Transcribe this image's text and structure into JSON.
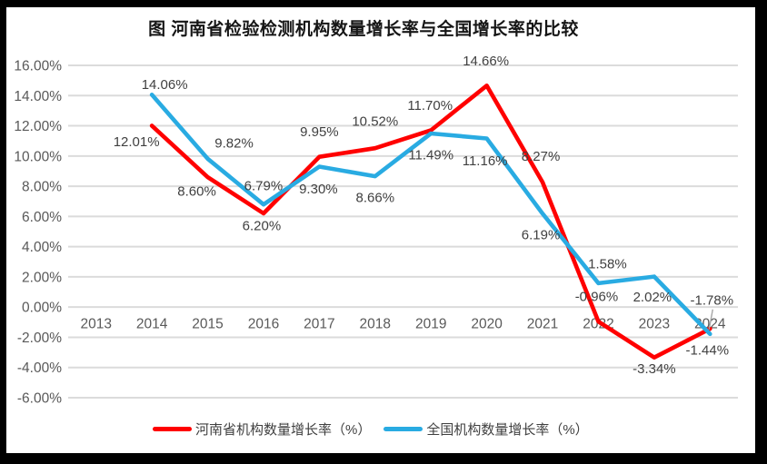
{
  "window": {
    "frame_color": "#000000",
    "panel_color": "#ffffff"
  },
  "chart_data": {
    "type": "line",
    "title": "图  河南省检验检测机构数量增长率与全国增长率的比较",
    "categories": [
      "2013",
      "2014",
      "2015",
      "2016",
      "2017",
      "2018",
      "2019",
      "2020",
      "2021",
      "2022",
      "2023",
      "2024"
    ],
    "y_axis": {
      "min": -6,
      "max": 16,
      "step": 2,
      "tick_labels": [
        "16.00%",
        "14.00%",
        "12.00%",
        "10.00%",
        "8.00%",
        "6.00%",
        "4.00%",
        "2.00%",
        "0.00%",
        "-2.00%",
        "-4.00%",
        "-6.00%"
      ]
    },
    "xlabel": "",
    "ylabel": "",
    "grid": true,
    "legend_position": "bottom",
    "colors": {
      "gridline": "#DBDBDB",
      "tick_text": "#595959",
      "data_label_text": "#404040",
      "leader_line": "#A6A6A6"
    },
    "series": [
      {
        "id": "henan-series",
        "name": "河南省机构数量增长率（%）",
        "color": "#FF0000",
        "values": [
          null,
          12.01,
          8.6,
          6.2,
          9.95,
          10.52,
          11.7,
          14.66,
          8.27,
          -0.96,
          -3.34,
          -1.44
        ],
        "labels": [
          "",
          "12.01%",
          "8.60%",
          "6.20%",
          "9.95%",
          "10.52%",
          "11.70%",
          "14.66%",
          "8.27%",
          "-0.96%",
          "-3.34%",
          "-1.44%"
        ],
        "label_offsets": [
          [
            0,
            0
          ],
          [
            -17,
            17
          ],
          [
            -12,
            15
          ],
          [
            -2,
            13
          ],
          [
            0,
            -28
          ],
          [
            0,
            -30
          ],
          [
            -1,
            -28
          ],
          [
            -1,
            -28
          ],
          [
            -2,
            -29
          ],
          [
            -2,
            -28
          ],
          [
            0,
            12
          ],
          [
            -3,
            23
          ]
        ]
      },
      {
        "id": "national-series",
        "name": "全国机构数量增长率（%）",
        "color": "#29ABE2",
        "values": [
          null,
          14.06,
          9.82,
          6.79,
          9.3,
          8.66,
          11.49,
          11.16,
          6.19,
          1.58,
          2.02,
          -1.78
        ],
        "labels": [
          "",
          "14.06%",
          "9.82%",
          "6.79%",
          "9.30%",
          "8.66%",
          "11.49%",
          "11.16%",
          "6.19%",
          "1.58%",
          "2.02%",
          "-1.78%"
        ],
        "label_offsets": [
          [
            0,
            0
          ],
          [
            14,
            -12
          ],
          [
            29,
            -18
          ],
          [
            0,
            -21
          ],
          [
            -1,
            24
          ],
          [
            0,
            23
          ],
          [
            0,
            23
          ],
          [
            -2,
            24
          ],
          [
            -2,
            23
          ],
          [
            10,
            -22
          ],
          [
            -2,
            22
          ],
          [
            2,
            -38
          ]
        ],
        "leader_index": 11
      }
    ]
  },
  "legend": {
    "items": [
      {
        "label": "河南省机构数量增长率（%）",
        "color": "#FF0000"
      },
      {
        "label": "全国机构数量增长率（%）",
        "color": "#29ABE2"
      }
    ]
  }
}
